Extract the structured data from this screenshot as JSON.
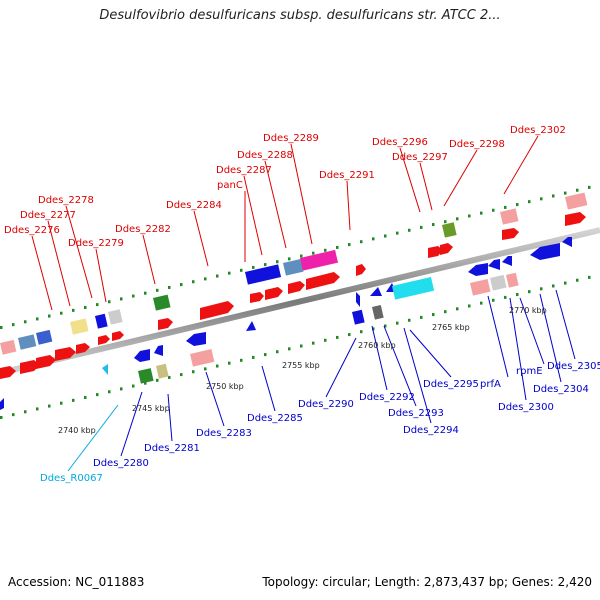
{
  "title": "Desulfovibrio desulfuricans subsp. desulfuricans str. ATCC 2...",
  "footer": {
    "accession": "Accession: NC_011883",
    "summary": "Topology: circular; Length: 2,873,437 bp; Genes: 2,420"
  },
  "colors": {
    "forward_label": "#dd0000",
    "reverse_label": "#0000cc",
    "rna_label": "#00aadd",
    "gene_red": "#ee1111",
    "gene_blue": "#1111dd",
    "backbone": "#8c8c8c",
    "tick_dots": "#228822"
  },
  "scale_labels": [
    {
      "text": "2740 kbp"
    },
    {
      "text": "2745 kbp"
    },
    {
      "text": "2750 kbp"
    },
    {
      "text": "2755 kbp"
    },
    {
      "text": "2760 kbp"
    },
    {
      "text": "2765 kbp"
    },
    {
      "text": "2770 kbp"
    }
  ],
  "gene_labels_forward": [
    {
      "text": "Ddes_2276"
    },
    {
      "text": "Ddes_2277"
    },
    {
      "text": "Ddes_2278"
    },
    {
      "text": "Ddes_2279"
    },
    {
      "text": "Ddes_2282"
    },
    {
      "text": "Ddes_2284"
    },
    {
      "text": "panC"
    },
    {
      "text": "Ddes_2287"
    },
    {
      "text": "Ddes_2288"
    },
    {
      "text": "Ddes_2289"
    },
    {
      "text": "Ddes_2291"
    },
    {
      "text": "Ddes_2296"
    },
    {
      "text": "Ddes_2297"
    },
    {
      "text": "Ddes_2298"
    },
    {
      "text": "Ddes_2302"
    }
  ],
  "gene_labels_reverse": [
    {
      "text": "Ddes_R0067"
    },
    {
      "text": "Ddes_2280"
    },
    {
      "text": "Ddes_2281"
    },
    {
      "text": "Ddes_2283"
    },
    {
      "text": "Ddes_2285"
    },
    {
      "text": "Ddes_2290"
    },
    {
      "text": "Ddes_2292"
    },
    {
      "text": "Ddes_2293"
    },
    {
      "text": "Ddes_2294"
    },
    {
      "text": "Ddes_2295"
    },
    {
      "text": "prfA"
    },
    {
      "text": "Ddes_2300"
    },
    {
      "text": "rpmE"
    },
    {
      "text": "Ddes_2304"
    },
    {
      "text": "Ddes_2305"
    }
  ]
}
